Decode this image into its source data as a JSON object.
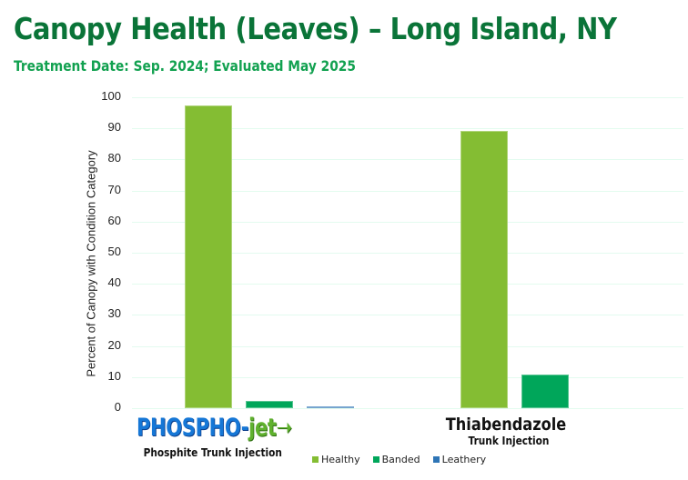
{
  "header": {
    "title": "Canopy Health (Leaves) – Long Island, NY",
    "subtitle": "Treatment Date: Sep. 2024; Evaluated May 2025"
  },
  "axis": {
    "ylabel": "Percent of Canopy with Condition Category",
    "yticks": [
      "100",
      "90",
      "80",
      "70",
      "60",
      "50",
      "40",
      "30",
      "20",
      "10",
      "0"
    ]
  },
  "categories": [
    {
      "logo_part1": "PHOSPHO-",
      "logo_part2": "jet",
      "sublabel": "Phosphite Trunk Injection"
    },
    {
      "label": "Thiabendazole",
      "sublabel": "Trunk Injection"
    }
  ],
  "legend": [
    {
      "label": "Healthy",
      "color": "#84bd33"
    },
    {
      "label": "Banded",
      "color": "#00a65a"
    },
    {
      "label": "Leathery",
      "color": "#2e75b6"
    }
  ],
  "chart_data": {
    "type": "bar",
    "title": "Canopy Health (Leaves) – Long Island, NY",
    "subtitle": "Treatment Date: Sep. 2024; Evaluated May 2025",
    "xlabel": "",
    "ylabel": "Percent of Canopy with Condition Category",
    "categories": [
      "PHOSPHO-jet Phosphite Trunk Injection",
      "Thiabendazole Trunk Injection"
    ],
    "series": [
      {
        "name": "Healthy",
        "color": "#84bd33",
        "values": [
          97.3,
          89.2
        ]
      },
      {
        "name": "Banded",
        "color": "#00a65a",
        "values": [
          2.3,
          10.8
        ]
      },
      {
        "name": "Leathery",
        "color": "#2e75b6",
        "values": [
          0.6,
          0
        ]
      }
    ],
    "ylim": [
      0,
      100
    ],
    "yticks": [
      0,
      10,
      20,
      30,
      40,
      50,
      60,
      70,
      80,
      90,
      100
    ],
    "grid": true,
    "legend_position": "bottom"
  }
}
